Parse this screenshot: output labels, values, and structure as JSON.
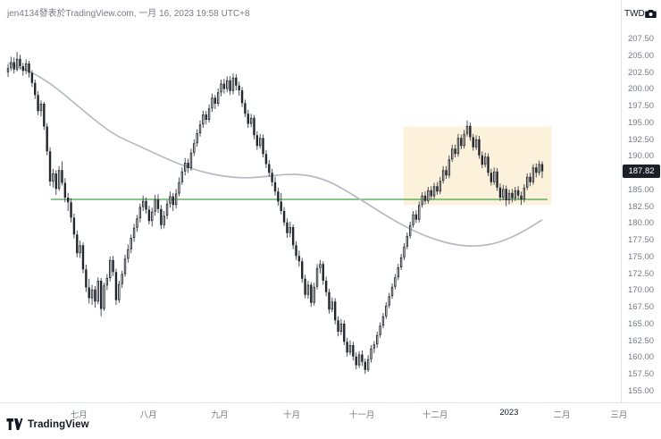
{
  "header": {
    "attribution": "jen4134發表於TradingView.com, 一月 16, 2023 19:58 UTC+8",
    "currency_label": "TWD"
  },
  "footer": {
    "brand": "TradingView"
  },
  "chart_data": {
    "type": "candlestick",
    "currency": "TWD",
    "last_price": 187.82,
    "last_price_label": "187.82",
    "y_axis": {
      "range": [
        155.0,
        207.5
      ],
      "ticks": [
        "207.50",
        "205.00",
        "202.50",
        "200.00",
        "197.50",
        "195.00",
        "192.50",
        "190.00",
        "185.00",
        "182.50",
        "180.00",
        "177.50",
        "175.00",
        "172.50",
        "170.00",
        "167.50",
        "165.00",
        "162.50",
        "160.00",
        "157.50",
        "155.00"
      ]
    },
    "x_axis": {
      "ticks": [
        {
          "label": "七月",
          "pos": 0.127
        },
        {
          "label": "八月",
          "pos": 0.239
        },
        {
          "label": "九月",
          "pos": 0.354
        },
        {
          "label": "十月",
          "pos": 0.47
        },
        {
          "label": "十一月",
          "pos": 0.583
        },
        {
          "label": "十二月",
          "pos": 0.701
        },
        {
          "label": "2023",
          "pos": 0.82,
          "emphasis": true
        },
        {
          "label": "二月",
          "pos": 0.905
        },
        {
          "label": "三月",
          "pos": 0.997
        }
      ]
    },
    "candles": [
      [
        202.6,
        203.8,
        201.9,
        203.2
      ],
      [
        203.2,
        204.9,
        202.8,
        204.1
      ],
      [
        204.1,
        204.8,
        202.4,
        203.0
      ],
      [
        203.0,
        205.6,
        202.7,
        204.6
      ],
      [
        204.6,
        205.2,
        203.0,
        203.5
      ],
      [
        203.5,
        204.0,
        202.1,
        202.8
      ],
      [
        202.8,
        204.5,
        202.3,
        203.9
      ],
      [
        203.9,
        204.3,
        201.8,
        202.5
      ],
      [
        202.5,
        202.9,
        200.4,
        201.0
      ],
      [
        201.0,
        201.5,
        198.6,
        199.2
      ],
      [
        199.2,
        199.8,
        196.2,
        196.8
      ],
      [
        196.8,
        198.4,
        196.0,
        197.9
      ],
      [
        197.9,
        198.2,
        194.0,
        194.5
      ],
      [
        194.5,
        195.0,
        190.2,
        190.8
      ],
      [
        190.8,
        191.4,
        185.6,
        186.3
      ],
      [
        186.3,
        188.2,
        185.4,
        187.5
      ],
      [
        187.5,
        188.0,
        184.3,
        185.2
      ],
      [
        185.2,
        188.6,
        184.9,
        188.0
      ],
      [
        188.0,
        189.3,
        185.7,
        186.1
      ],
      [
        186.1,
        186.8,
        183.2,
        183.9
      ],
      [
        183.9,
        184.6,
        181.9,
        183.2
      ],
      [
        183.2,
        183.8,
        180.2,
        180.9
      ],
      [
        180.9,
        181.5,
        177.8,
        178.4
      ],
      [
        178.4,
        179.0,
        175.0,
        175.6
      ],
      [
        175.6,
        177.5,
        174.9,
        176.8
      ],
      [
        176.8,
        177.2,
        172.6,
        173.2
      ],
      [
        173.2,
        173.9,
        169.8,
        170.5
      ],
      [
        170.5,
        171.8,
        168.1,
        168.9
      ],
      [
        168.9,
        170.9,
        167.9,
        170.2
      ],
      [
        170.2,
        170.7,
        167.5,
        168.4
      ],
      [
        168.4,
        172.0,
        168.0,
        171.5
      ],
      [
        171.5,
        171.9,
        166.2,
        167.3
      ],
      [
        167.3,
        171.2,
        167.0,
        170.8
      ],
      [
        170.8,
        172.5,
        170.1,
        171.9
      ],
      [
        171.9,
        175.1,
        171.4,
        174.6
      ],
      [
        174.6,
        175.2,
        172.2,
        172.8
      ],
      [
        172.8,
        173.3,
        167.9,
        168.6
      ],
      [
        168.6,
        171.5,
        168.2,
        171.0
      ],
      [
        171.0,
        173.0,
        170.4,
        172.5
      ],
      [
        172.5,
        175.4,
        172.1,
        174.8
      ],
      [
        174.8,
        176.9,
        174.2,
        176.2
      ],
      [
        176.2,
        178.4,
        175.6,
        177.9
      ],
      [
        177.9,
        180.0,
        177.3,
        179.4
      ],
      [
        179.4,
        181.3,
        178.8,
        180.8
      ],
      [
        180.8,
        183.0,
        180.2,
        182.5
      ],
      [
        182.5,
        184.2,
        181.9,
        183.4
      ],
      [
        183.4,
        183.9,
        181.5,
        182.1
      ],
      [
        182.1,
        182.7,
        179.9,
        180.4
      ],
      [
        180.4,
        182.4,
        179.6,
        181.8
      ],
      [
        181.8,
        184.3,
        181.2,
        183.6
      ],
      [
        183.6,
        184.4,
        181.6,
        182.2
      ],
      [
        182.2,
        182.8,
        179.2,
        179.8
      ],
      [
        179.8,
        181.9,
        179.3,
        181.2
      ],
      [
        181.2,
        183.5,
        180.7,
        183.0
      ],
      [
        183.0,
        184.8,
        182.4,
        184.1
      ],
      [
        184.1,
        184.6,
        181.9,
        182.8
      ],
      [
        182.8,
        185.2,
        182.3,
        184.5
      ],
      [
        184.5,
        186.9,
        184.1,
        186.2
      ],
      [
        186.2,
        188.4,
        185.8,
        187.8
      ],
      [
        187.8,
        189.8,
        187.2,
        189.1
      ],
      [
        189.1,
        189.7,
        187.6,
        188.3
      ],
      [
        188.3,
        191.2,
        187.9,
        190.6
      ],
      [
        190.6,
        192.6,
        190.1,
        192.0
      ],
      [
        192.0,
        194.1,
        191.5,
        193.5
      ],
      [
        193.5,
        195.4,
        193.0,
        194.8
      ],
      [
        194.8,
        196.9,
        194.3,
        196.3
      ],
      [
        196.3,
        196.8,
        194.8,
        195.5
      ],
      [
        195.5,
        197.8,
        195.1,
        197.2
      ],
      [
        197.2,
        199.4,
        196.7,
        198.8
      ],
      [
        198.8,
        199.2,
        197.1,
        197.9
      ],
      [
        197.9,
        200.2,
        197.5,
        199.6
      ],
      [
        199.6,
        201.5,
        199.0,
        200.9
      ],
      [
        200.9,
        201.6,
        199.4,
        200.1
      ],
      [
        200.1,
        202.0,
        199.6,
        201.4
      ],
      [
        201.4,
        202.0,
        199.2,
        199.8
      ],
      [
        199.8,
        202.4,
        199.3,
        201.8
      ],
      [
        201.8,
        202.3,
        199.9,
        200.6
      ],
      [
        200.6,
        201.2,
        199.1,
        199.9
      ],
      [
        199.9,
        200.4,
        197.4,
        198.0
      ],
      [
        198.0,
        198.5,
        195.9,
        196.4
      ],
      [
        196.4,
        197.0,
        194.3,
        194.9
      ],
      [
        194.9,
        196.4,
        194.4,
        195.8
      ],
      [
        195.8,
        196.2,
        192.6,
        193.2
      ],
      [
        193.2,
        193.8,
        191.0,
        191.6
      ],
      [
        191.6,
        193.4,
        191.2,
        192.8
      ],
      [
        192.8,
        193.3,
        189.9,
        190.4
      ],
      [
        190.4,
        191.0,
        188.3,
        188.9
      ],
      [
        188.9,
        189.5,
        187.0,
        187.6
      ],
      [
        187.6,
        188.2,
        185.6,
        186.2
      ],
      [
        186.2,
        187.0,
        184.2,
        184.8
      ],
      [
        184.8,
        185.4,
        182.7,
        183.3
      ],
      [
        183.3,
        184.6,
        181.4,
        181.9
      ],
      [
        181.9,
        182.5,
        179.7,
        180.2
      ],
      [
        180.2,
        180.8,
        177.9,
        178.6
      ],
      [
        178.6,
        180.3,
        178.0,
        179.5
      ],
      [
        179.5,
        179.9,
        176.2,
        176.8
      ],
      [
        176.8,
        177.4,
        174.6,
        175.2
      ],
      [
        175.2,
        176.0,
        173.6,
        174.4
      ],
      [
        174.4,
        174.9,
        171.2,
        171.8
      ],
      [
        171.8,
        172.4,
        168.9,
        169.4
      ],
      [
        169.4,
        171.5,
        168.8,
        170.9
      ],
      [
        170.9,
        171.3,
        167.6,
        168.2
      ],
      [
        168.2,
        171.2,
        167.8,
        170.6
      ],
      [
        170.6,
        174.0,
        170.2,
        173.4
      ],
      [
        173.4,
        174.6,
        172.6,
        174.0
      ],
      [
        174.0,
        174.4,
        170.9,
        171.5
      ],
      [
        171.5,
        172.1,
        169.2,
        169.8
      ],
      [
        169.8,
        170.3,
        166.6,
        167.2
      ],
      [
        167.2,
        169.0,
        166.8,
        168.4
      ],
      [
        168.4,
        168.9,
        165.0,
        165.6
      ],
      [
        165.6,
        166.2,
        163.2,
        163.9
      ],
      [
        163.9,
        165.8,
        163.4,
        165.1
      ],
      [
        165.1,
        165.6,
        161.9,
        162.4
      ],
      [
        162.4,
        163.0,
        160.2,
        160.8
      ],
      [
        160.8,
        162.6,
        160.4,
        161.9
      ],
      [
        161.9,
        162.4,
        159.6,
        160.2
      ],
      [
        160.2,
        160.8,
        158.3,
        158.9
      ],
      [
        158.9,
        161.0,
        158.5,
        160.5
      ],
      [
        160.5,
        161.1,
        158.8,
        159.4
      ],
      [
        159.4,
        159.9,
        157.6,
        158.2
      ],
      [
        158.2,
        160.4,
        157.9,
        159.8
      ],
      [
        159.8,
        161.9,
        159.3,
        161.4
      ],
      [
        161.4,
        162.5,
        160.7,
        162.0
      ],
      [
        162.0,
        163.9,
        161.5,
        163.4
      ],
      [
        163.4,
        165.3,
        163.0,
        164.8
      ],
      [
        164.8,
        166.7,
        164.4,
        166.2
      ],
      [
        166.2,
        168.3,
        165.8,
        167.8
      ],
      [
        167.8,
        169.7,
        167.4,
        169.2
      ],
      [
        169.2,
        171.1,
        168.8,
        170.6
      ],
      [
        170.6,
        172.5,
        170.2,
        172.0
      ],
      [
        172.0,
        174.0,
        171.6,
        173.5
      ],
      [
        173.5,
        175.5,
        173.1,
        175.0
      ],
      [
        175.0,
        177.1,
        174.6,
        176.6
      ],
      [
        176.6,
        178.7,
        176.2,
        178.2
      ],
      [
        178.2,
        180.3,
        177.8,
        179.8
      ],
      [
        179.8,
        181.9,
        179.4,
        181.4
      ],
      [
        181.4,
        182.0,
        180.1,
        180.6
      ],
      [
        180.6,
        183.3,
        180.2,
        182.8
      ],
      [
        182.8,
        184.7,
        182.4,
        184.2
      ],
      [
        184.2,
        184.8,
        182.9,
        183.4
      ],
      [
        183.4,
        185.5,
        183.0,
        185.0
      ],
      [
        185.0,
        185.6,
        183.6,
        184.1
      ],
      [
        184.1,
        186.1,
        183.7,
        185.6
      ],
      [
        185.6,
        186.2,
        184.3,
        184.8
      ],
      [
        184.8,
        187.0,
        184.4,
        186.4
      ],
      [
        186.4,
        188.6,
        186.0,
        188.0
      ],
      [
        188.0,
        188.6,
        186.7,
        187.2
      ],
      [
        187.2,
        190.2,
        186.8,
        189.6
      ],
      [
        189.6,
        191.8,
        189.2,
        191.2
      ],
      [
        191.2,
        191.8,
        189.9,
        190.4
      ],
      [
        190.4,
        193.4,
        190.0,
        192.8
      ],
      [
        192.8,
        193.3,
        191.1,
        191.6
      ],
      [
        191.6,
        194.0,
        191.2,
        193.4
      ],
      [
        193.4,
        195.4,
        193.0,
        194.6
      ],
      [
        194.6,
        195.1,
        192.4,
        192.9
      ],
      [
        192.9,
        193.4,
        190.9,
        191.4
      ],
      [
        191.4,
        193.2,
        191.0,
        192.6
      ],
      [
        192.6,
        193.1,
        189.7,
        190.2
      ],
      [
        190.2,
        190.8,
        188.3,
        188.8
      ],
      [
        188.8,
        190.6,
        188.4,
        190.0
      ],
      [
        190.0,
        190.5,
        187.1,
        187.6
      ],
      [
        187.6,
        188.2,
        185.7,
        186.2
      ],
      [
        186.2,
        188.4,
        185.8,
        187.8
      ],
      [
        187.8,
        188.3,
        184.9,
        185.4
      ],
      [
        185.4,
        186.0,
        183.4,
        183.9
      ],
      [
        183.9,
        185.8,
        183.5,
        185.2
      ],
      [
        185.2,
        185.7,
        182.6,
        183.5
      ],
      [
        183.5,
        185.1,
        182.9,
        184.6
      ],
      [
        184.6,
        185.2,
        183.2,
        183.8
      ],
      [
        183.8,
        185.5,
        183.4,
        185.0
      ],
      [
        185.0,
        185.6,
        183.6,
        184.2
      ],
      [
        184.2,
        184.8,
        182.8,
        183.6
      ],
      [
        183.6,
        185.9,
        183.2,
        185.4
      ],
      [
        185.4,
        187.5,
        185.0,
        187.0
      ],
      [
        187.0,
        187.6,
        185.6,
        186.2
      ],
      [
        186.2,
        188.9,
        185.8,
        188.4
      ],
      [
        188.4,
        189.0,
        186.9,
        187.6
      ],
      [
        187.6,
        189.4,
        187.2,
        188.9
      ],
      [
        188.9,
        189.3,
        186.8,
        187.82
      ]
    ],
    "ma_line": {
      "name": "moving-average",
      "color": "#b7bac4",
      "points": [
        [
          0.0,
          204.0
        ],
        [
          0.04,
          202.8
        ],
        [
          0.08,
          200.9
        ],
        [
          0.12,
          198.3
        ],
        [
          0.16,
          195.6
        ],
        [
          0.2,
          193.2
        ],
        [
          0.24,
          191.8
        ],
        [
          0.28,
          190.3
        ],
        [
          0.32,
          188.9
        ],
        [
          0.36,
          187.8
        ],
        [
          0.4,
          187.1
        ],
        [
          0.44,
          186.8
        ],
        [
          0.48,
          187.0
        ],
        [
          0.52,
          187.4
        ],
        [
          0.56,
          187.3
        ],
        [
          0.6,
          186.4
        ],
        [
          0.64,
          184.6
        ],
        [
          0.68,
          182.6
        ],
        [
          0.72,
          180.6
        ],
        [
          0.76,
          178.9
        ],
        [
          0.8,
          177.6
        ],
        [
          0.84,
          176.8
        ],
        [
          0.88,
          176.6
        ],
        [
          0.92,
          177.2
        ],
        [
          0.96,
          178.6
        ],
        [
          1.0,
          180.6
        ]
      ]
    },
    "support_line": {
      "price": 183.7,
      "x_start": 0.08,
      "x_end": 1.01,
      "color": "#44a248"
    },
    "highlight_box": {
      "x_start": 0.74,
      "x_end": 1.017,
      "price_top": 194.5,
      "price_bottom": 182.8,
      "color": "rgba(245,216,150,0.33)"
    },
    "colors": {
      "up": "#ffffff",
      "down": "#23262d",
      "outline": "#23262d",
      "wick": "#3a3d46",
      "axis_text": "#787b86",
      "badge_bg": "#1c1f27",
      "badge_text": "#ffffff"
    }
  }
}
